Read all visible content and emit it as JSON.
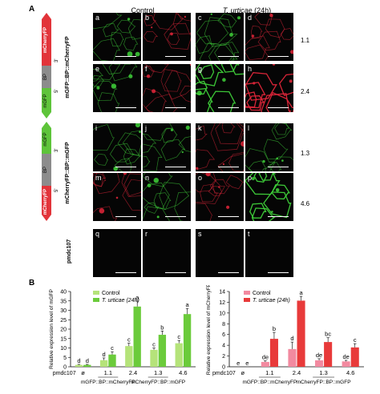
{
  "panel_a": {
    "letter": "A",
    "col_control": "Control",
    "col_treated_species": "T. urticae",
    "col_treated_time": "(24h)",
    "constructs": [
      {
        "name": "mGFP::BP::mCherryFP",
        "top_segment": "mCherryFP",
        "mid_segment": "BP",
        "bottom_segment": "mGFP",
        "end3": "3'",
        "end5": "5'"
      },
      {
        "name": "mCherryFP::BP::mGFP",
        "top_segment": "mGFP",
        "mid_segment": "BP",
        "bottom_segment": "mCherryFP",
        "end3": "3'",
        "end5": "5'"
      },
      {
        "name": "pmdc107"
      }
    ],
    "rows": [
      {
        "tiles": [
          "a",
          "b",
          "c",
          "d"
        ],
        "line": "1.1"
      },
      {
        "tiles": [
          "e",
          "f",
          "g",
          "h"
        ],
        "line": "2.4"
      },
      {
        "tiles": [
          "i",
          "j",
          "k",
          "l"
        ],
        "line": "1.3"
      },
      {
        "tiles": [
          "m",
          "n",
          "o",
          "p"
        ],
        "line": "4.6"
      },
      {
        "tiles": [
          "q",
          "r",
          "s",
          "t"
        ],
        "line": ""
      }
    ],
    "colors": {
      "green": "#5ec43a",
      "red": "#e2343a",
      "gray": "#8c8c8c"
    }
  },
  "panel_b": {
    "letter": "B",
    "group_labels": [
      "mGFP::BP::mCherryFP",
      "mCherryFP::BP::mGFP"
    ],
    "x_prefix": "pmdc107",
    "x_prefix_sym": "ø"
  },
  "chart_data": [
    {
      "type": "bar",
      "ylabel": "Relative expression level of mGFP",
      "ylim": [
        0,
        40
      ],
      "yticks": [
        0,
        5,
        10,
        15,
        20,
        25,
        30,
        35,
        40
      ],
      "categories": [
        "ø",
        "1.1",
        "2.4",
        "1.3",
        "4.6"
      ],
      "series": [
        {
          "name": "Control",
          "color": "#b5e37a",
          "values": [
            1,
            3.5,
            11,
            9,
            12.5
          ],
          "errors": [
            0.3,
            1.2,
            1.5,
            1,
            1.5
          ],
          "letters": [
            "d",
            "d",
            "c",
            "c",
            "c"
          ]
        },
        {
          "name": "T. urticae (24h)",
          "color": "#6bcb3b",
          "values": [
            1,
            6.5,
            32,
            17,
            28
          ],
          "errors": [
            0.3,
            1.5,
            3,
            2,
            3
          ],
          "letters": [
            "d",
            "c",
            "a",
            "b",
            "a"
          ]
        }
      ]
    },
    {
      "type": "bar",
      "ylabel": "Relative expression level of mCherryFP",
      "ylim": [
        0,
        14
      ],
      "yticks": [
        0,
        2,
        4,
        6,
        8,
        10,
        12,
        14
      ],
      "categories": [
        "ø",
        "1.1",
        "2.4",
        "1.3",
        "4.6"
      ],
      "series": [
        {
          "name": "Control",
          "color": "#f28aa0",
          "values": [
            0,
            0.9,
            3.3,
            1.2,
            1
          ],
          "errors": [
            0,
            0.2,
            1.3,
            0.3,
            0.2
          ],
          "letters": [
            "e",
            "de",
            "d",
            "de",
            "de"
          ]
        },
        {
          "name": "T. urticae (24h)",
          "color": "#e83a3a",
          "values": [
            0,
            5.2,
            12.3,
            4.6,
            3.6
          ],
          "errors": [
            0,
            1.2,
            0.8,
            0.8,
            0.7
          ],
          "letters": [
            "e",
            "b",
            "a",
            "bc",
            "c"
          ]
        }
      ]
    }
  ]
}
